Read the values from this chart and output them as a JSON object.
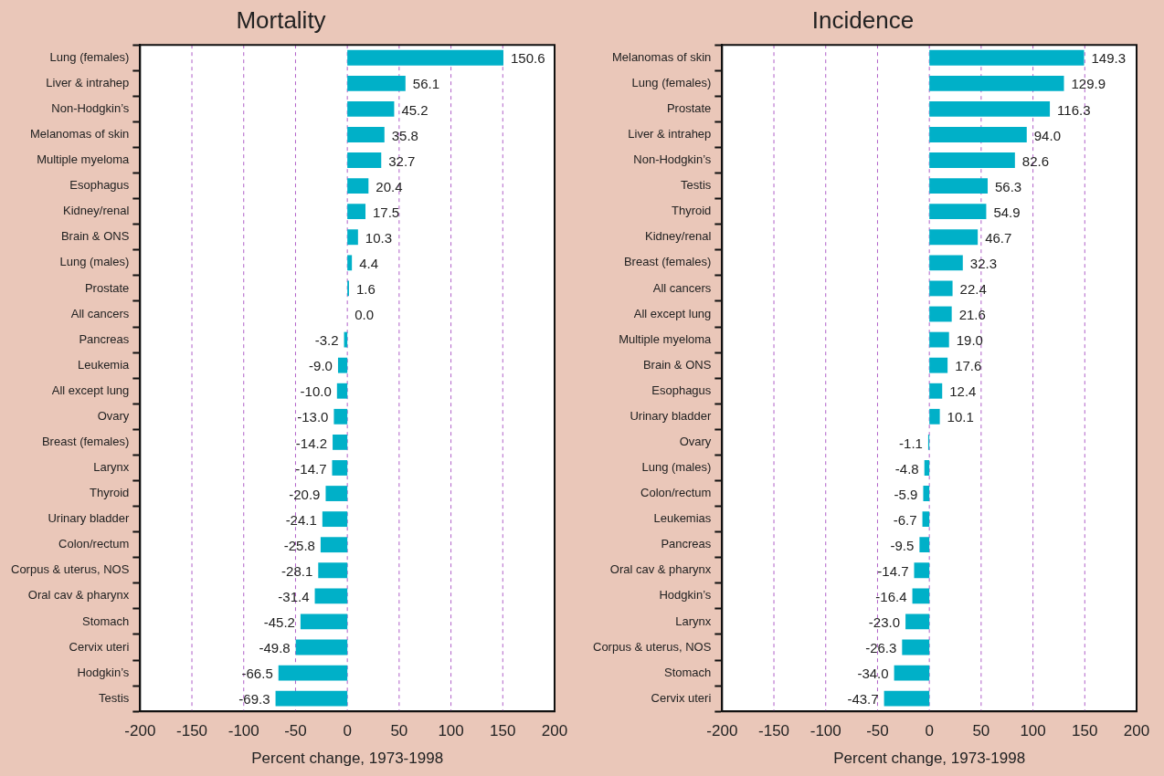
{
  "chart_data": [
    {
      "type": "bar",
      "orientation": "horizontal",
      "title": "Mortality",
      "xlabel": "Percent change, 1973-1998",
      "categories": [
        "Lung (females)",
        "Liver & intrahep",
        "Non-Hodgkin’s",
        "Melanomas of skin",
        "Multiple myeloma",
        "Esophagus",
        "Kidney/renal",
        "Brain & ONS",
        "Lung (males)",
        "Prostate",
        "All cancers",
        "Pancreas",
        "Leukemia",
        "All except lung",
        "Ovary",
        "Breast (females)",
        "Larynx",
        "Thyroid",
        "Urinary bladder",
        "Colon/rectum",
        "Corpus & uterus, NOS",
        "Oral cav & pharynx",
        "Stomach",
        "Cervix uteri",
        "Hodgkin’s",
        "Testis"
      ],
      "values": [
        150.6,
        56.1,
        45.2,
        35.8,
        32.7,
        20.4,
        17.5,
        10.3,
        4.4,
        1.6,
        0.0,
        -3.2,
        -9.0,
        -10.0,
        -13.0,
        -14.2,
        -14.7,
        -20.9,
        -24.1,
        -25.8,
        -28.1,
        -31.4,
        -45.2,
        -49.8,
        -66.5,
        -69.3
      ],
      "value_labels": [
        "150.6",
        "56.1",
        "45.2",
        "35.8",
        "32.7",
        "20.4",
        "17.5",
        "10.3",
        "4.4",
        "1.6",
        "0.0",
        "-3.2",
        "-9.0",
        "-10.0",
        "-13.0",
        "-14.2",
        "-14.7",
        "-20.9",
        "-24.1",
        "-25.8",
        "-28.1",
        "-31.4",
        "-45.2",
        "-49.8",
        "-66.5",
        "-69.3"
      ],
      "color": "#00b0c8",
      "xlim": [
        -200,
        200
      ],
      "xticks": [
        -200,
        -150,
        -100,
        -50,
        0,
        50,
        100,
        150,
        200
      ],
      "grid": "x",
      "line_style": "dashed",
      "legend": false
    },
    {
      "type": "bar",
      "orientation": "horizontal",
      "title": "Incidence",
      "xlabel": "Percent change, 1973-1998",
      "categories": [
        "Melanomas of skin",
        "Lung (females)",
        "Prostate",
        "Liver & intrahep",
        "Non-Hodgkin’s",
        "Testis",
        "Thyroid",
        "Kidney/renal",
        "Breast (females)",
        "All cancers",
        "All except lung",
        "Multiple myeloma",
        "Brain & ONS",
        "Esophagus",
        "Urinary bladder",
        "Ovary",
        "Lung (males)",
        "Colon/rectum",
        "Leukemias",
        "Pancreas",
        "Oral cav & pharynx",
        "Hodgkin’s",
        "Larynx",
        "Corpus & uterus, NOS",
        "Stomach",
        "Cervix uteri"
      ],
      "values": [
        149.3,
        129.9,
        116.3,
        94.0,
        82.6,
        56.3,
        54.9,
        46.7,
        32.3,
        22.4,
        21.6,
        19.0,
        17.6,
        12.4,
        10.1,
        -1.1,
        -4.8,
        -5.9,
        -6.7,
        -9.5,
        -14.7,
        -16.4,
        -23.0,
        -26.3,
        -34.0,
        -43.7
      ],
      "value_labels": [
        "149.3",
        "129.9",
        "116.3",
        "94.0",
        "82.6",
        "56.3",
        "54.9",
        "46.7",
        "32.3",
        "22.4",
        "21.6",
        "19.0",
        "17.6",
        "12.4",
        "10.1",
        "-1.1",
        "-4.8",
        "-5.9",
        "-6.7",
        "-9.5",
        "-14.7",
        "-16.4",
        "-23.0",
        "-26.3",
        "-34.0",
        "-43.7"
      ],
      "color": "#00b0c8",
      "xlim": [
        -200,
        200
      ],
      "xticks": [
        -200,
        -150,
        -100,
        -50,
        0,
        50,
        100,
        150,
        200
      ],
      "grid": "x",
      "line_style": "dashed",
      "legend": false
    }
  ]
}
